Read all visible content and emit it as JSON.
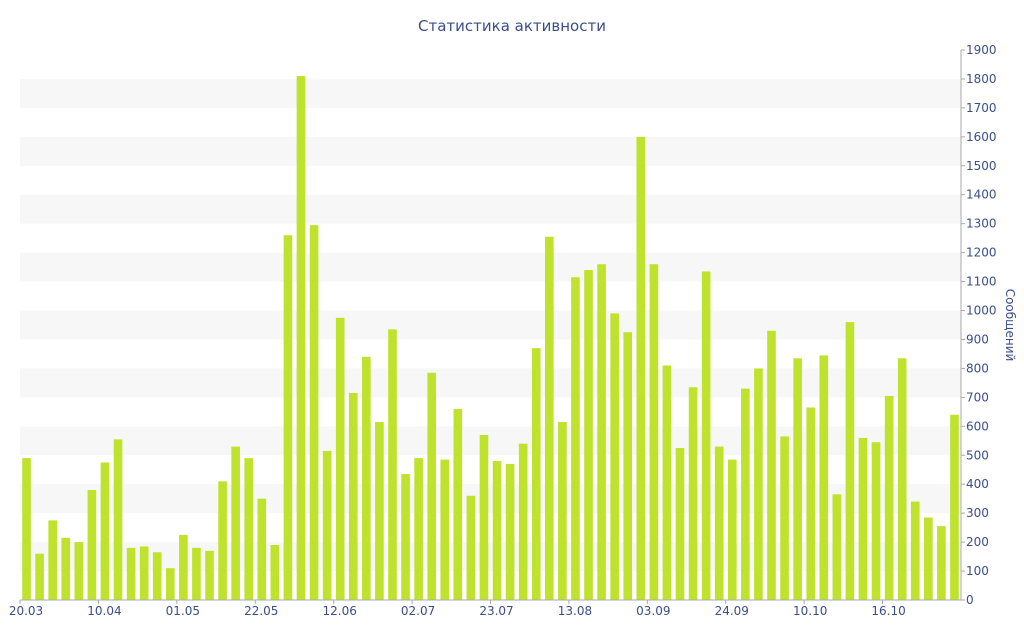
{
  "chart_data": {
    "type": "bar",
    "title": "Статистика активности",
    "xlabel": "",
    "ylabel": "Сообщений",
    "ylim": [
      0,
      1900
    ],
    "y_ticks": [
      0,
      100,
      200,
      300,
      400,
      500,
      600,
      700,
      800,
      900,
      1000,
      1100,
      1200,
      1300,
      1400,
      1500,
      1600,
      1700,
      1800,
      1900
    ],
    "y_axis_side": "right",
    "grid": "alternating horizontal bands",
    "bar_color": "#bfe22d",
    "band_color": "#f7f7f7",
    "text_color": "#3a4e8c",
    "axis_color": "#aaaaaa",
    "x_tick_labels": [
      {
        "label": "20.03",
        "index": 0
      },
      {
        "label": "10.04",
        "index": 6
      },
      {
        "label": "01.05",
        "index": 12
      },
      {
        "label": "22.05",
        "index": 18
      },
      {
        "label": "12.06",
        "index": 24
      },
      {
        "label": "02.07",
        "index": 30
      },
      {
        "label": "23.07",
        "index": 36
      },
      {
        "label": "13.08",
        "index": 42
      },
      {
        "label": "03.09",
        "index": 48
      },
      {
        "label": "24.09",
        "index": 54
      },
      {
        "label": "10.10",
        "index": 60
      },
      {
        "label": "16.10",
        "index": 66
      }
    ],
    "values": [
      490,
      160,
      275,
      215,
      200,
      380,
      475,
      555,
      180,
      185,
      165,
      110,
      225,
      180,
      170,
      410,
      530,
      490,
      350,
      190,
      1260,
      1810,
      1295,
      515,
      975,
      715,
      840,
      615,
      935,
      435,
      490,
      785,
      485,
      660,
      360,
      570,
      480,
      470,
      540,
      870,
      1255,
      615,
      1115,
      1140,
      1160,
      990,
      925,
      1600,
      1160,
      810,
      525,
      735,
      1135,
      530,
      485,
      730,
      800,
      930,
      565,
      835,
      665,
      845,
      365,
      960,
      560,
      545,
      705,
      835,
      340,
      285,
      255,
      640
    ]
  }
}
